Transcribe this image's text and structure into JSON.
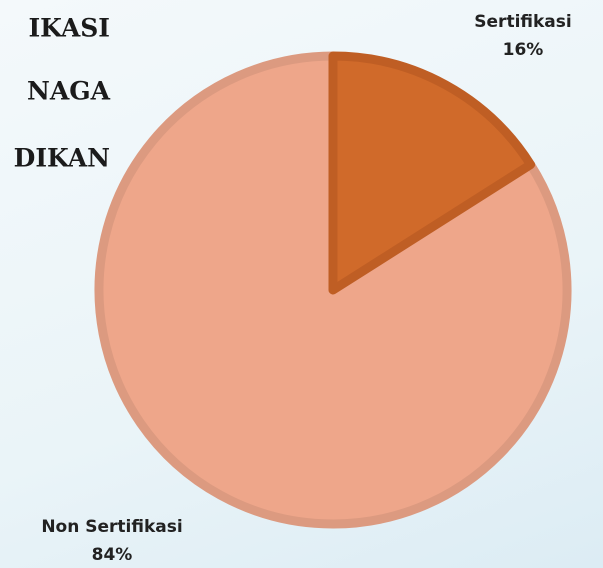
{
  "chart_data": {
    "type": "pie",
    "title_lines": [
      "IKASI",
      "NAGA",
      "DIKAN"
    ],
    "categories": [
      "Sertifikasi",
      "Non Sertifikasi"
    ],
    "values": [
      16,
      84
    ],
    "value_labels": [
      "16%",
      "84%"
    ],
    "colors": [
      "#d06a2a",
      "#eea68a"
    ],
    "edge_colors": [
      "#bf5e24",
      "#dc9a80"
    ]
  }
}
